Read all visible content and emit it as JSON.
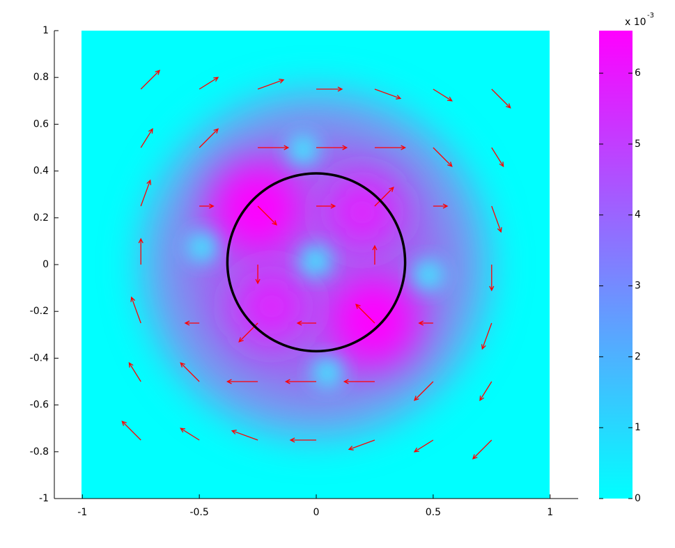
{
  "chart_data": {
    "type": "quiver",
    "xlim": [
      -1.12,
      1.12
    ],
    "ylim": [
      -1,
      1
    ],
    "xticks": [
      -1,
      -0.5,
      0,
      0.5,
      1
    ],
    "yticks": [
      -1,
      -0.8,
      -0.6,
      -0.4,
      -0.2,
      0,
      0.2,
      0.4,
      0.6,
      0.8,
      1
    ],
    "arrow_color": "#ff0000",
    "arrows": {
      "x": [
        -0.75,
        -0.5,
        -0.25,
        0,
        0.25,
        0.5,
        0.75,
        -0.75,
        -0.5,
        -0.25,
        0,
        0.25,
        0.5,
        0.75,
        -0.75,
        -0.5,
        -0.25,
        0,
        0.25,
        0.5,
        0.75,
        -0.75,
        -0.5,
        -0.25,
        0,
        0.25,
        0.5,
        0.75,
        -0.75,
        -0.5,
        -0.25,
        0,
        0.25,
        0.5,
        0.75,
        -0.75,
        -0.5,
        -0.25,
        0,
        0.25,
        0.5,
        0.75,
        -0.75,
        -0.5,
        -0.25,
        0,
        0.25,
        0.5,
        0.75
      ],
      "y": [
        0.75,
        0.75,
        0.75,
        0.75,
        0.75,
        0.75,
        0.75,
        0.5,
        0.5,
        0.5,
        0.5,
        0.5,
        0.5,
        0.5,
        0.25,
        0.25,
        0.25,
        0.25,
        0.25,
        0.25,
        0.25,
        0,
        0,
        0,
        0,
        0,
        0,
        0,
        -0.25,
        -0.25,
        -0.25,
        -0.25,
        -0.25,
        -0.25,
        -0.25,
        -0.5,
        -0.5,
        -0.5,
        -0.5,
        -0.5,
        -0.5,
        -0.5,
        -0.75,
        -0.75,
        -0.75,
        -0.75,
        -0.75,
        -0.75,
        -0.75
      ],
      "u": [
        0.08,
        0.08,
        0.11,
        0.11,
        0.11,
        0.08,
        0.08,
        0.05,
        0.08,
        0.13,
        0.13,
        0.13,
        0.08,
        0.05,
        0.04,
        0.06,
        0.08,
        0.08,
        0.08,
        0.06,
        0.04,
        0,
        0,
        0,
        0,
        0,
        0,
        0,
        -0.04,
        -0.06,
        -0.08,
        -0.08,
        -0.08,
        -0.06,
        -0.04,
        -0.05,
        -0.08,
        -0.13,
        -0.13,
        -0.13,
        -0.08,
        -0.05,
        -0.08,
        -0.08,
        -0.11,
        -0.11,
        -0.11,
        -0.08,
        -0.08
      ],
      "v": [
        0.08,
        0.05,
        0.04,
        0,
        -0.04,
        -0.05,
        -0.08,
        0.08,
        0.08,
        0,
        0,
        0,
        -0.08,
        -0.08,
        0.11,
        0,
        -0.08,
        0,
        0.08,
        0,
        -0.11,
        0.11,
        0,
        -0.08,
        0,
        0.08,
        0,
        -0.11,
        0.11,
        0,
        -0.08,
        0,
        0.08,
        0,
        -0.11,
        0.08,
        0.08,
        0,
        0,
        0,
        -0.08,
        -0.08,
        0.08,
        0.05,
        0.04,
        0,
        -0.04,
        -0.05,
        -0.08
      ]
    },
    "circle": {
      "center": [
        0,
        0.01
      ],
      "radius": 0.38,
      "color": "#000000"
    },
    "colorbar": {
      "lim": [
        0,
        6.6
      ],
      "ticks": [
        0,
        1,
        2,
        3,
        4,
        5,
        6
      ],
      "exponent_label": "x 10",
      "exponent": "-3",
      "colors": [
        "#00ffff",
        "#ff00ff"
      ]
    }
  }
}
